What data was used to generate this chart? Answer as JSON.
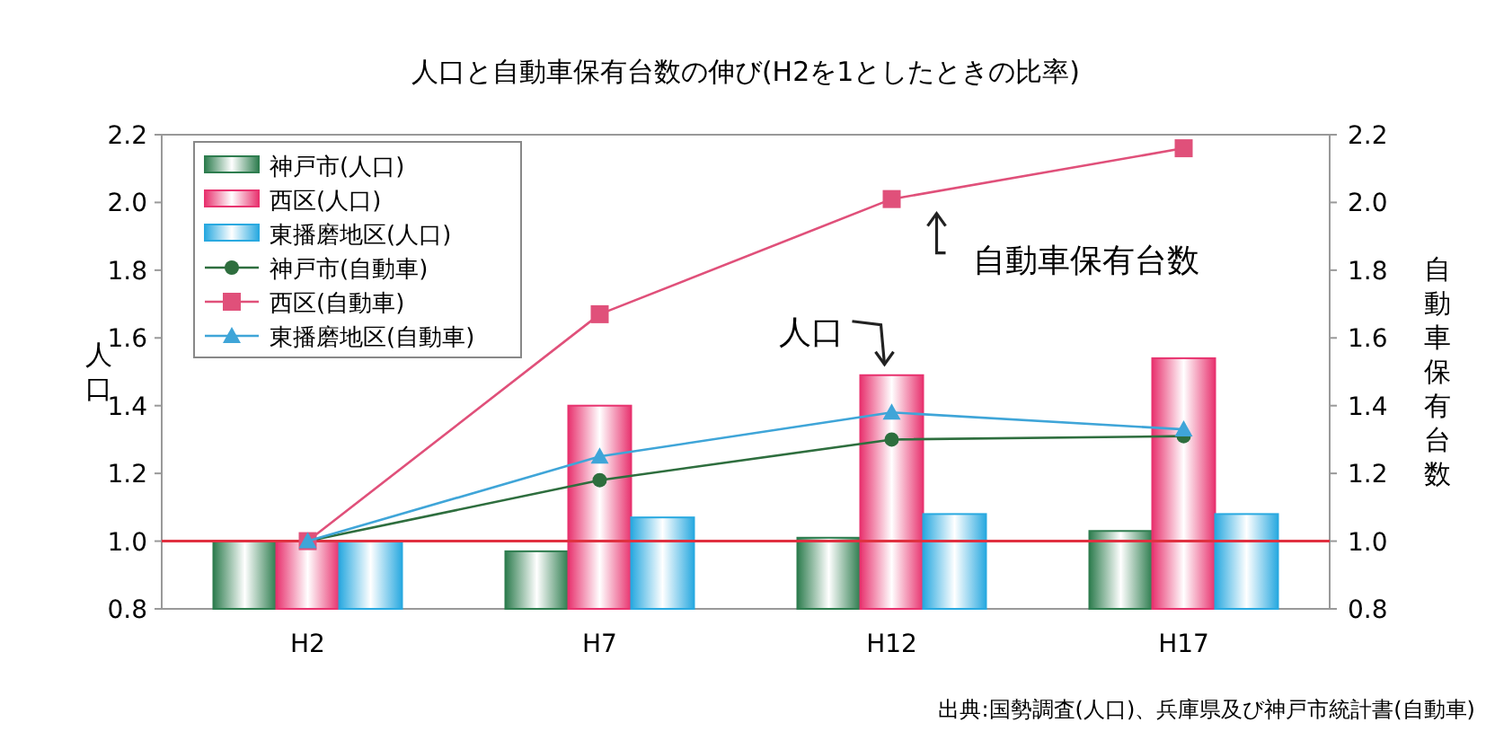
{
  "chart_data": {
    "type": "bar",
    "title": "人口と自動車保有台数の伸び(H2を1としたときの比率)",
    "ylabel": "人口",
    "y2label": "自動車保有台数",
    "categories": [
      "H2",
      "H7",
      "H12",
      "H17"
    ],
    "series": [
      {
        "name": "神戸市(人口)",
        "color": "#2e7d4f",
        "values": [
          1.0,
          0.97,
          1.01,
          1.03
        ]
      },
      {
        "name": "西区(人口)",
        "color": "#e8336f",
        "values": [
          1.0,
          1.4,
          1.49,
          1.54
        ]
      },
      {
        "name": "東播磨地区(人口)",
        "color": "#29a9e0",
        "values": [
          1.0,
          1.07,
          1.08,
          1.08
        ]
      },
      {
        "name": "神戸市(自動車)",
        "type": "line",
        "marker": "circle",
        "color": "#2e6e3e",
        "values": [
          1.0,
          1.18,
          1.3,
          1.31
        ]
      },
      {
        "name": "西区(自動車)",
        "type": "line",
        "marker": "square",
        "color": "#e0507a",
        "values": [
          1.0,
          1.67,
          2.01,
          2.16
        ]
      },
      {
        "name": "東播磨地区(自動車)",
        "type": "line",
        "marker": "triangle",
        "color": "#3fa5d8",
        "values": [
          1.0,
          1.25,
          1.38,
          1.33
        ]
      }
    ],
    "ylim": [
      0.8,
      2.2
    ],
    "yticks": [
      {
        "value": 0.8,
        "label": "0.8"
      },
      {
        "value": 1.0,
        "label": "1.0"
      },
      {
        "value": 1.2,
        "label": "1.2"
      },
      {
        "value": 1.4,
        "label": "1.4"
      },
      {
        "value": 1.6,
        "label": "1.6"
      },
      {
        "value": 1.8,
        "label": "1.8"
      },
      {
        "value": 2.0,
        "label": "2.0"
      },
      {
        "value": 2.2,
        "label": "2.2"
      }
    ],
    "y2lim": [
      0.8,
      2.2
    ],
    "y2ticks": [
      {
        "value": 0.8,
        "label": "0.8"
      },
      {
        "value": 1.0,
        "label": "1.0"
      },
      {
        "value": 1.2,
        "label": "1.2"
      },
      {
        "value": 1.4,
        "label": "1.4"
      },
      {
        "value": 1.6,
        "label": "1.6"
      },
      {
        "value": 1.8,
        "label": "1.8"
      },
      {
        "value": 2.0,
        "label": "2.0"
      },
      {
        "value": 2.2,
        "label": "2.2"
      }
    ],
    "ref_lines": [
      {
        "axis": "y",
        "value": 1.0,
        "color": "#e03040"
      }
    ],
    "legend": "top left",
    "grid": false,
    "annotations": [
      {
        "text": "人口",
        "x": "H12",
        "y": 1.49
      },
      {
        "text": "自動車保有台数",
        "x": "H12",
        "y": 2.01
      },
      "出典:国勢調査(人口)、兵庫県及び神戸市統計書(自動車)"
    ]
  }
}
